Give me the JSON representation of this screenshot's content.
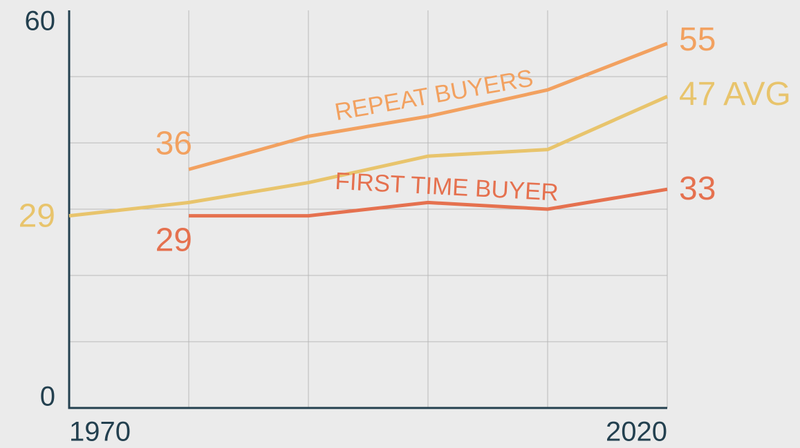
{
  "chart_data": {
    "type": "line",
    "x": [
      1970,
      1980,
      1990,
      2000,
      2010,
      2020
    ],
    "xlim": [
      1970,
      2020
    ],
    "xticks": [
      1970,
      2020
    ],
    "ylim": [
      0,
      60
    ],
    "yticks": [
      0,
      60
    ],
    "ygrid": [
      10,
      20,
      30,
      40,
      50
    ],
    "grid": true,
    "series": [
      {
        "name": "REPEAT BUYERS",
        "color": "#f2a160",
        "values": [
          null,
          36,
          41,
          44,
          48,
          55
        ]
      },
      {
        "name": "AVG",
        "color": "#e8c46c",
        "values": [
          29,
          31,
          34,
          38,
          39,
          47
        ]
      },
      {
        "name": "FIRST TIME BUYER",
        "color": "#e5714f",
        "values": [
          null,
          29,
          29,
          31,
          30,
          33
        ]
      }
    ]
  }
}
